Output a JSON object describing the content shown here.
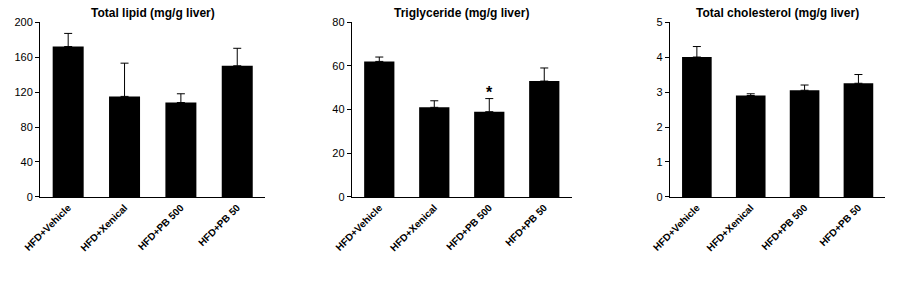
{
  "chart_data": [
    {
      "type": "bar",
      "title": "Total lipid (mg/g liver)",
      "categories": [
        "HFD+Vehicle",
        "HFD+Xenical",
        "HFD+PB 500",
        "HFD+PB 50"
      ],
      "values": [
        172,
        115,
        108,
        150
      ],
      "errors": [
        15,
        38,
        10,
        20
      ],
      "color": "#000000",
      "ylim": [
        0,
        200
      ],
      "yticks": [
        0,
        40,
        80,
        120,
        160,
        200
      ],
      "grid": false
    },
    {
      "type": "bar",
      "title": "Triglyceride (mg/g liver)",
      "categories": [
        "HFD+Vehicle",
        "HFD+Xenical",
        "HFD+PB 500",
        "HFD+PB 50"
      ],
      "values": [
        62,
        41,
        39,
        53
      ],
      "errors": [
        2,
        3,
        6,
        6
      ],
      "color": "#000000",
      "ylim": [
        0,
        80
      ],
      "yticks": [
        0,
        20,
        40,
        60,
        80
      ],
      "grid": false,
      "annotations": [
        {
          "text": "*",
          "category": "HFD+PB 500"
        }
      ]
    },
    {
      "type": "bar",
      "title": "Total cholesterol (mg/g liver)",
      "categories": [
        "HFD+Vehicle",
        "HFD+Xenical",
        "HFD+PB 500",
        "HFD+PB 50"
      ],
      "values": [
        4.0,
        2.9,
        3.05,
        3.25
      ],
      "errors": [
        0.3,
        0.05,
        0.15,
        0.25
      ],
      "color": "#000000",
      "ylim": [
        0,
        5
      ],
      "yticks": [
        0,
        1,
        2,
        3,
        4,
        5
      ],
      "grid": false
    }
  ]
}
